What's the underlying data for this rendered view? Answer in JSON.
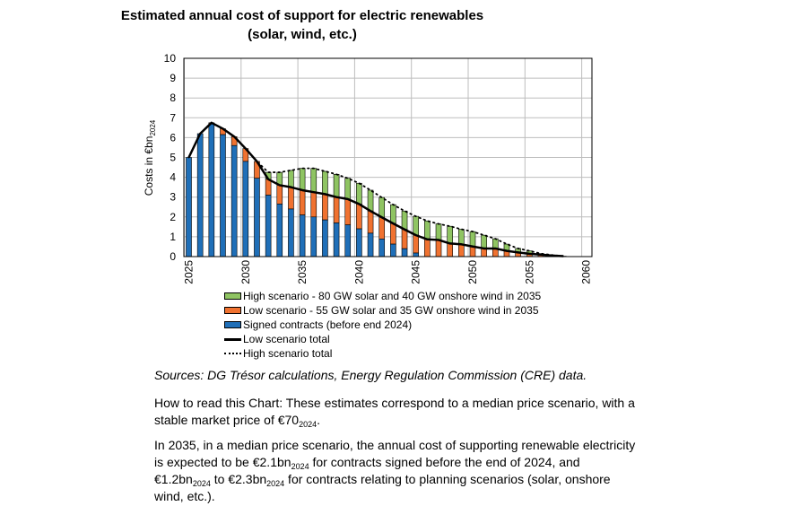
{
  "chart_data": {
    "type": "bar",
    "stacked": true,
    "title": [
      "Estimated annual cost of support for electric renewables",
      "(solar, wind, etc.)"
    ],
    "ylabel": "Costs in €bn",
    "ylabel_sub": "2024",
    "ylim": [
      0,
      10
    ],
    "yticks": [
      "0",
      "1",
      "2",
      "3",
      "4",
      "5",
      "6",
      "7",
      "8",
      "9",
      "10"
    ],
    "xticks": [
      "2025",
      "2030",
      "2035",
      "2040",
      "2045",
      "2050",
      "2055",
      "2060"
    ],
    "grid": true,
    "legend_position": "bottom",
    "years": [
      2025,
      2026,
      2027,
      2028,
      2029,
      2030,
      2031,
      2032,
      2033,
      2034,
      2035,
      2036,
      2037,
      2038,
      2039,
      2040,
      2041,
      2042,
      2043,
      2044,
      2045,
      2046,
      2047,
      2048,
      2049,
      2050,
      2051,
      2052,
      2053,
      2054,
      2055,
      2056,
      2057,
      2058
    ],
    "signed_contracts": [
      5.0,
      6.2,
      6.7,
      6.15,
      5.6,
      4.8,
      3.95,
      3.1,
      2.65,
      2.4,
      2.1,
      2.0,
      1.85,
      1.7,
      1.6,
      1.4,
      1.18,
      0.89,
      0.63,
      0.4,
      0.18,
      0,
      0,
      0,
      0,
      0,
      0,
      0,
      0,
      0,
      0,
      0,
      0,
      0
    ],
    "low_scenario_total": [
      5.0,
      6.2,
      6.75,
      6.45,
      6.05,
      5.45,
      4.8,
      3.9,
      3.6,
      3.5,
      3.35,
      3.25,
      3.15,
      3.0,
      2.9,
      2.65,
      2.3,
      1.98,
      1.67,
      1.37,
      1.08,
      0.87,
      0.84,
      0.66,
      0.62,
      0.51,
      0.41,
      0.41,
      0.29,
      0.21,
      0.14,
      0.1,
      0.05,
      0.02
    ],
    "high_scenario_total": [
      5.0,
      6.2,
      6.75,
      6.45,
      6.05,
      5.45,
      4.8,
      4.25,
      4.25,
      4.35,
      4.45,
      4.45,
      4.3,
      4.15,
      3.95,
      3.7,
      3.35,
      2.98,
      2.62,
      2.3,
      2.03,
      1.8,
      1.65,
      1.53,
      1.38,
      1.26,
      1.08,
      0.9,
      0.63,
      0.41,
      0.29,
      0.15,
      0.08,
      0.02
    ],
    "series": [
      {
        "name": "High scenario - 80 GW solar and 40 GW onshore wind in 2035",
        "color": "#8fc462"
      },
      {
        "name": "Low scenario - 55 GW solar and 35 GW onshore wind in 2035",
        "color": "#f07230"
      },
      {
        "name": "Signed contracts (before end 2024)",
        "color": "#1f6fb8"
      },
      {
        "name": "Low scenario total",
        "color": "#000000"
      },
      {
        "name": "High scenario total",
        "color": "#000000"
      }
    ]
  },
  "sources": "Sources: DG Trésor calculations, Energy Regulation Commission (CRE) data.",
  "how_to_read": {
    "a": "How to read this Chart: These estimates correspond to a median price scenario, with a stable market price of €70",
    "sub": "2024",
    "b": "."
  },
  "summary": {
    "a": "In 2035, in a median price scenario, the annual cost of supporting renewable electricity is expected to be €2.1bn",
    "sub1": "2024",
    "b": " for contracts signed before the end of 2024, and €1.2bn",
    "sub2": "2024",
    "c": " to €2.3bn",
    "sub3": "2024",
    "d": " for contracts relating to planning scenarios (solar, onshore wind, etc.)."
  }
}
